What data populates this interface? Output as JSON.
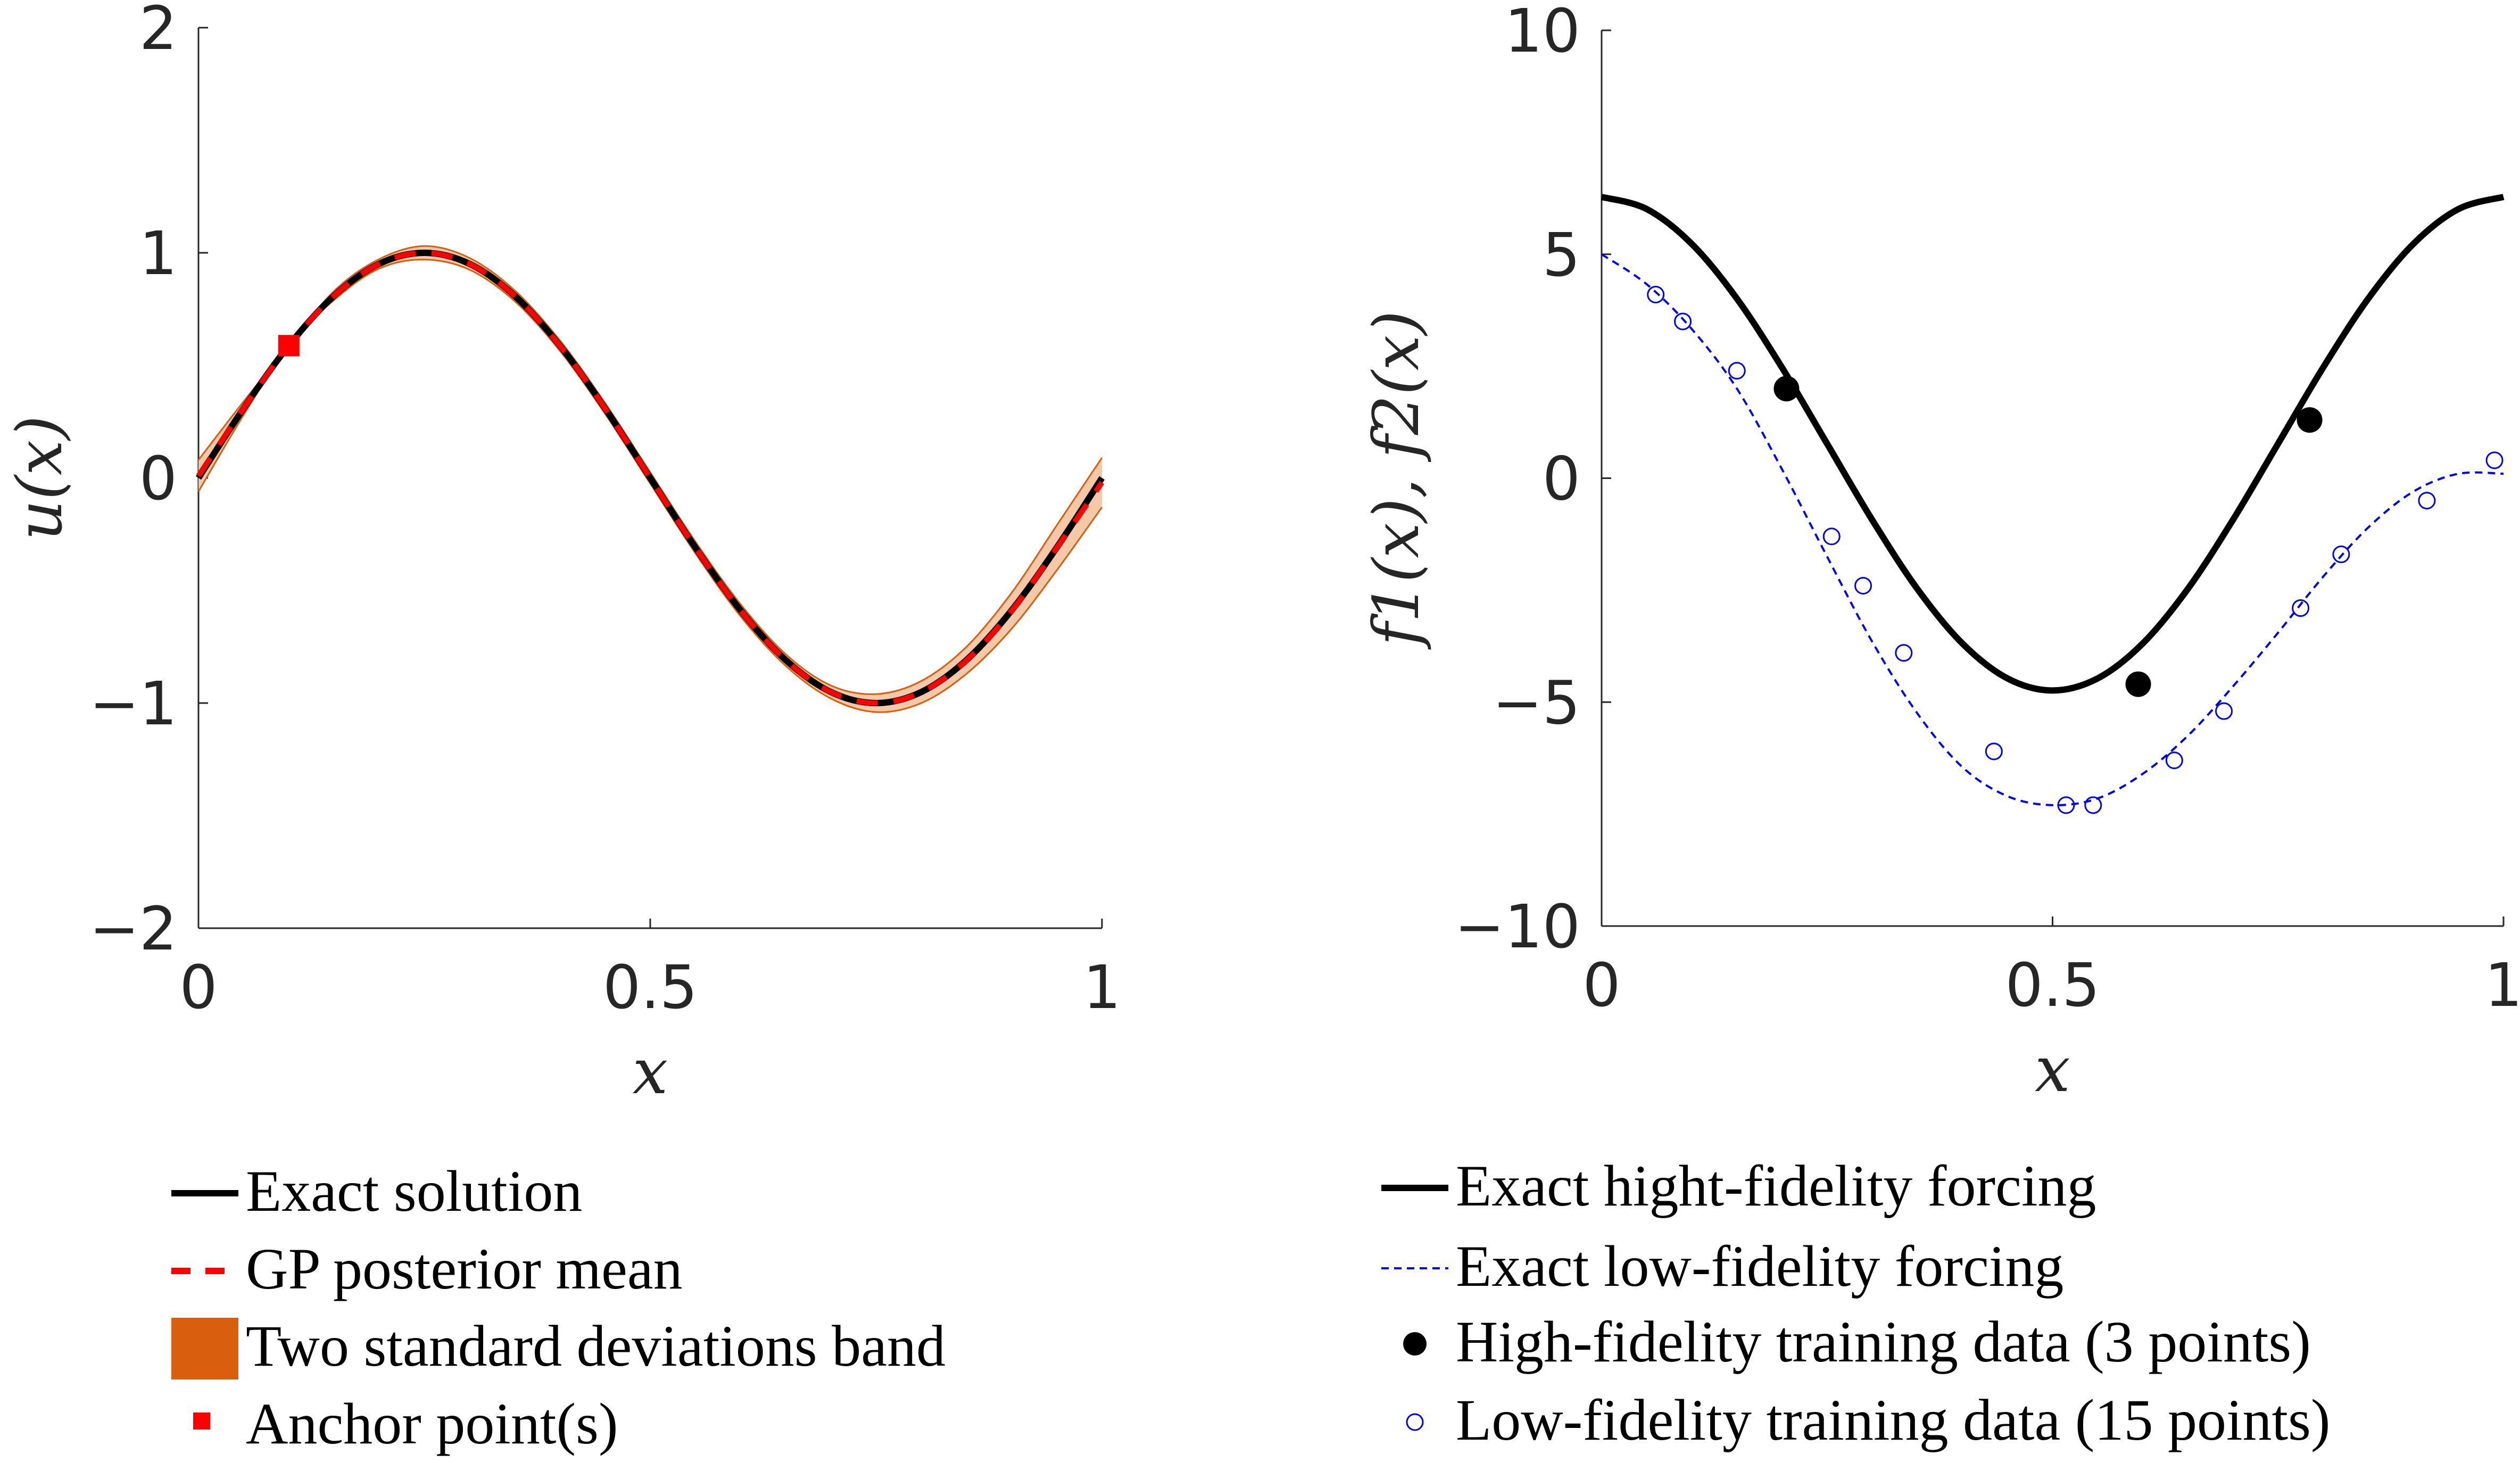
{
  "colors": {
    "exact": "#000000",
    "gp_mean": "#ff0000",
    "band_fill": "#f3c9a8",
    "band_edge": "#d95f0e",
    "band_legend": "#d95f0e",
    "anchor": "#ff0000",
    "low_fidelity": "#0000ff",
    "axis": "#262626"
  },
  "chart_data": [
    {
      "type": "line",
      "xlabel": "x",
      "ylabel": "u(x)",
      "xlim": [
        0,
        1
      ],
      "ylim": [
        -2,
        2
      ],
      "x_ticks": [
        "0",
        "0.5",
        "1"
      ],
      "x_tick_values": [
        0,
        0.5,
        1
      ],
      "y_ticks": [
        "-2",
        "-1",
        "0",
        "1",
        "2"
      ],
      "y_tick_values": [
        -2,
        -1,
        0,
        1,
        2
      ],
      "grid": false,
      "legend_placement": "below",
      "series": [
        {
          "name": "Exact solution",
          "x": [
            0,
            0.05,
            0.1,
            0.15,
            0.2,
            0.25,
            0.3,
            0.35,
            0.4,
            0.45,
            0.5,
            0.55,
            0.6,
            0.65,
            0.7,
            0.75,
            0.8,
            0.85,
            0.9,
            0.95,
            1
          ],
          "y": [
            0,
            0.309,
            0.588,
            0.809,
            0.951,
            1,
            0.951,
            0.809,
            0.588,
            0.309,
            0,
            -0.309,
            -0.588,
            -0.809,
            -0.951,
            -1,
            -0.951,
            -0.809,
            -0.588,
            -0.309,
            0
          ]
        },
        {
          "name": "GP posterior mean",
          "x": [
            0,
            0.05,
            0.1,
            0.15,
            0.2,
            0.25,
            0.3,
            0.35,
            0.4,
            0.45,
            0.5,
            0.55,
            0.6,
            0.65,
            0.7,
            0.75,
            0.8,
            0.85,
            0.9,
            0.95,
            1
          ],
          "y": [
            0.01,
            0.31,
            0.588,
            0.809,
            0.951,
            1,
            0.951,
            0.809,
            0.588,
            0.309,
            0,
            -0.309,
            -0.588,
            -0.809,
            -0.951,
            -1,
            -0.951,
            -0.81,
            -0.59,
            -0.31,
            -0.02
          ]
        },
        {
          "name": "Two standard deviations band",
          "x": [
            0,
            0.05,
            0.1,
            0.15,
            0.2,
            0.25,
            0.3,
            0.35,
            0.4,
            0.45,
            0.5,
            0.55,
            0.6,
            0.65,
            0.7,
            0.75,
            0.8,
            0.85,
            0.9,
            0.95,
            1
          ],
          "lower": [
            -0.06,
            0.28,
            0.588,
            0.79,
            0.93,
            0.97,
            0.925,
            0.785,
            0.565,
            0.285,
            -0.025,
            -0.335,
            -0.615,
            -0.835,
            -0.98,
            -1.04,
            -1.0,
            -0.87,
            -0.67,
            -0.41,
            -0.13
          ],
          "upper": [
            0.08,
            0.34,
            0.588,
            0.83,
            0.972,
            1.03,
            0.977,
            0.833,
            0.611,
            0.333,
            0.025,
            -0.283,
            -0.561,
            -0.783,
            -0.922,
            -0.96,
            -0.902,
            -0.75,
            -0.51,
            -0.21,
            0.09
          ]
        },
        {
          "name": "Anchor point(s)",
          "x": [
            0.1
          ],
          "y": [
            0.588
          ]
        }
      ],
      "legend": [
        "Exact solution",
        "GP posterior mean",
        "Two standard deviations band",
        "Anchor point(s)"
      ]
    },
    {
      "type": "line",
      "xlabel": "x",
      "ylabel": "f1(x), f2(x)",
      "xlim": [
        0,
        1
      ],
      "ylim": [
        -10,
        10
      ],
      "x_ticks": [
        "0",
        "0.5",
        "1"
      ],
      "x_tick_values": [
        0,
        0.5,
        1
      ],
      "y_ticks": [
        "-10",
        "-5",
        "0",
        "5",
        "10"
      ],
      "y_tick_values": [
        -10,
        -5,
        0,
        5,
        10
      ],
      "grid": false,
      "legend_placement": "below",
      "series": [
        {
          "name": "Exact hight-fidelity forcing",
          "x": [
            0,
            0.05,
            0.1,
            0.15,
            0.2,
            0.25,
            0.3,
            0.35,
            0.4,
            0.45,
            0.5,
            0.55,
            0.6,
            0.65,
            0.7,
            0.75,
            0.8,
            0.85,
            0.9,
            0.95,
            1
          ],
          "y": [
            6.28,
            6.01,
            5.23,
            4.01,
            2.47,
            0.77,
            -0.93,
            -2.47,
            -3.69,
            -4.47,
            -4.74,
            -4.47,
            -3.69,
            -2.47,
            -0.93,
            0.77,
            2.47,
            4.01,
            5.23,
            6.01,
            6.28
          ]
        },
        {
          "name": "Exact low-fidelity forcing",
          "x": [
            0,
            0.05,
            0.1,
            0.15,
            0.2,
            0.25,
            0.3,
            0.35,
            0.4,
            0.45,
            0.5,
            0.55,
            0.6,
            0.65,
            0.7,
            0.75,
            0.8,
            0.85,
            0.9,
            0.95,
            1
          ],
          "y": [
            5.0,
            4.33,
            3.33,
            2.0,
            0.2,
            -1.75,
            -3.65,
            -5.25,
            -6.45,
            -7.1,
            -7.3,
            -7.15,
            -6.6,
            -5.75,
            -4.65,
            -3.45,
            -2.2,
            -1.1,
            -0.3,
            0.1,
            0.1
          ]
        },
        {
          "name": "High-fidelity training data (3 points)",
          "x": [
            0.205,
            0.595,
            0.785
          ],
          "y": [
            2.0,
            -4.6,
            1.3
          ]
        },
        {
          "name": "Low-fidelity training data (15 points)",
          "x": [
            0.06,
            0.09,
            0.15,
            0.255,
            0.29,
            0.335,
            0.435,
            0.515,
            0.545,
            0.635,
            0.69,
            0.775,
            0.82,
            0.915,
            0.99
          ],
          "y": [
            4.1,
            3.5,
            2.4,
            -1.3,
            -2.4,
            -3.9,
            -6.1,
            -7.3,
            -7.3,
            -6.3,
            -5.2,
            -2.9,
            -1.7,
            -0.5,
            0.4
          ]
        }
      ],
      "legend": [
        "Exact hight-fidelity forcing",
        "Exact low-fidelity forcing",
        "High-fidelity training data (3 points)",
        "Low-fidelity training data (15 points)"
      ]
    }
  ]
}
